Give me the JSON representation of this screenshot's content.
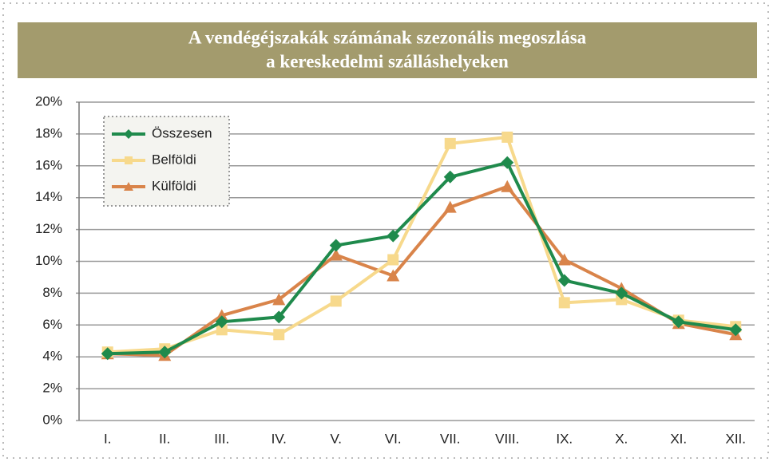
{
  "chart_data": {
    "type": "line",
    "title": [
      "A vendégéjszakák számának szezonális megoszlása",
      "a kereskedelmi szálláshelyeken"
    ],
    "categories": [
      "I.",
      "II.",
      "III.",
      "IV.",
      "V.",
      "VI.",
      "VII.",
      "VIII.",
      "IX.",
      "X.",
      "XI.",
      "XII."
    ],
    "series": [
      {
        "name": "Összesen",
        "color": "#1f8a4c",
        "marker": "diamond",
        "values": [
          4.2,
          4.3,
          6.2,
          6.5,
          11.0,
          11.6,
          15.3,
          16.2,
          8.8,
          8.0,
          6.2,
          5.7
        ]
      },
      {
        "name": "Belföldi",
        "color": "#f7d98c",
        "marker": "square",
        "values": [
          4.3,
          4.5,
          5.7,
          5.4,
          7.5,
          10.1,
          17.4,
          17.8,
          7.4,
          7.6,
          6.3,
          5.9
        ]
      },
      {
        "name": "Külföldi",
        "color": "#d9844a",
        "marker": "triangle",
        "values": [
          4.2,
          4.1,
          6.6,
          7.6,
          10.4,
          9.1,
          13.4,
          14.7,
          10.1,
          8.3,
          6.1,
          5.4
        ]
      }
    ],
    "ylim": [
      0,
      20
    ],
    "yticks": [
      {
        "value": 0,
        "label": "0%"
      },
      {
        "value": 2,
        "label": "2%"
      },
      {
        "value": 4,
        "label": "4%"
      },
      {
        "value": 6,
        "label": "6%"
      },
      {
        "value": 8,
        "label": "8%"
      },
      {
        "value": 10,
        "label": "10%"
      },
      {
        "value": 12,
        "label": "12%"
      },
      {
        "value": 14,
        "label": "14%"
      },
      {
        "value": 16,
        "label": "16%"
      },
      {
        "value": 18,
        "label": "18%"
      },
      {
        "value": 20,
        "label": "20%"
      }
    ],
    "grid": true,
    "legend": "upper left"
  }
}
